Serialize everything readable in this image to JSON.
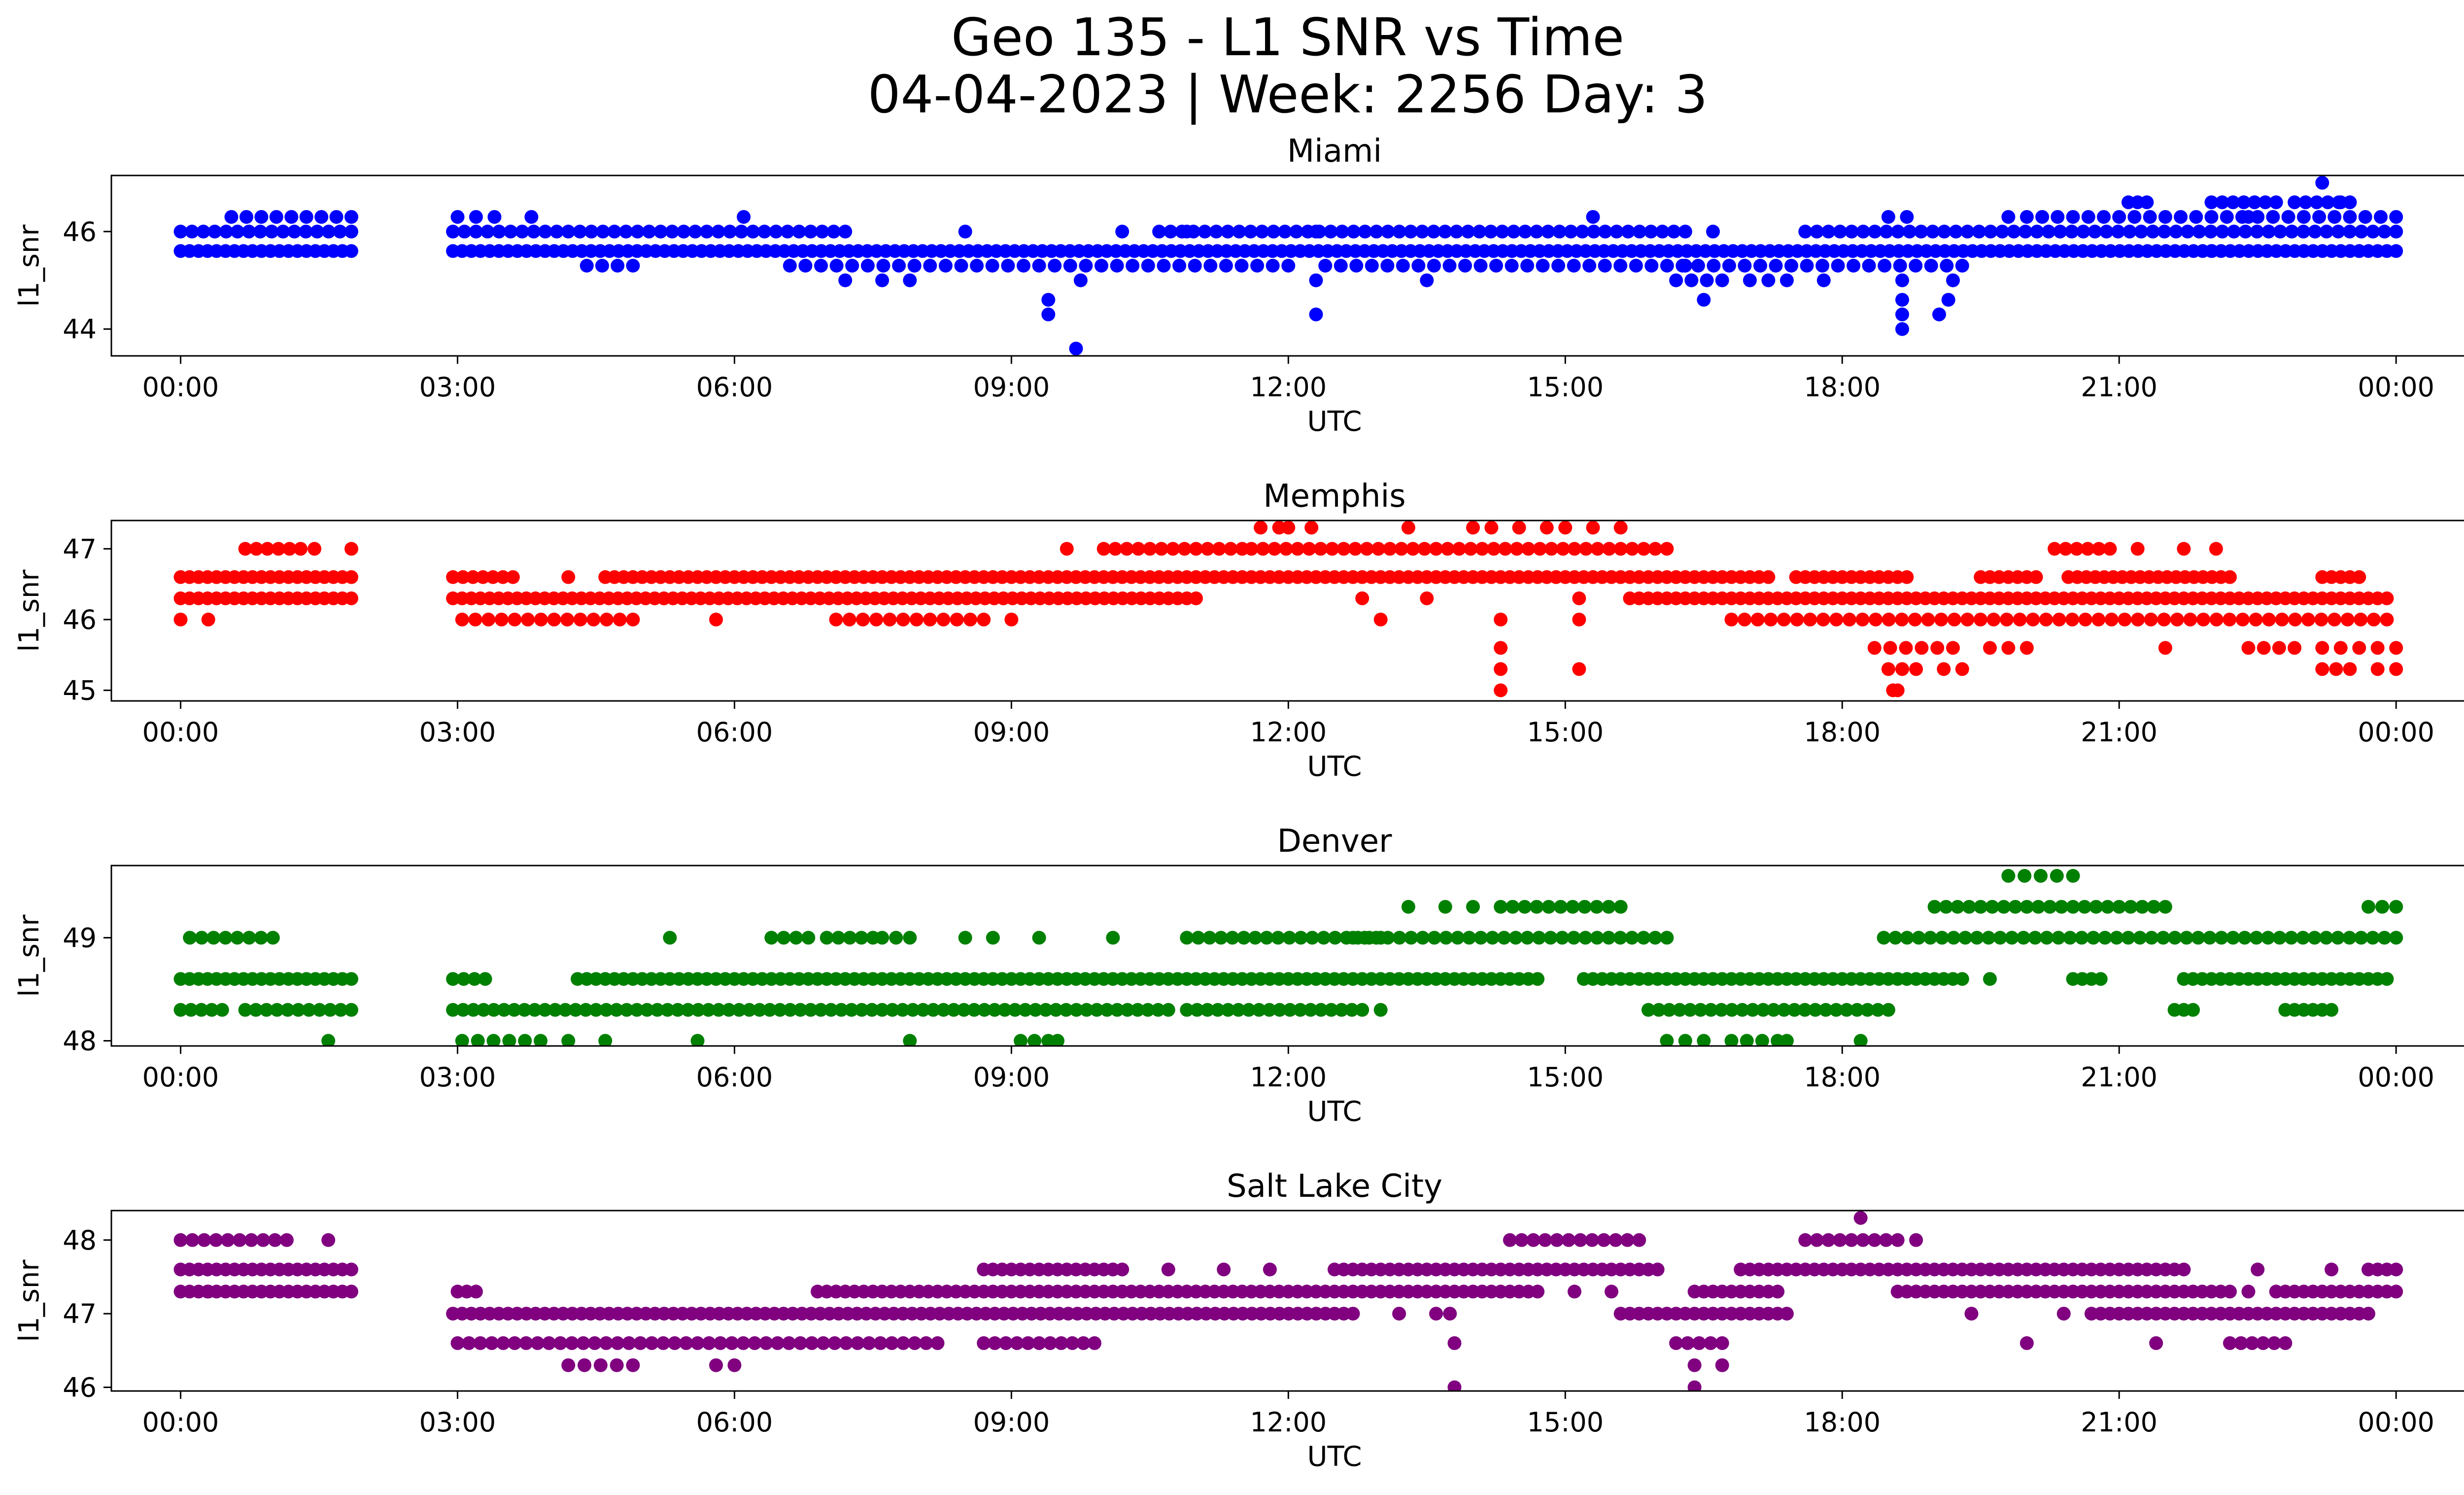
{
  "title_line1": "Geo 135 - L1 SNR vs Time",
  "title_line2": "04-04-2023 | Week: 2256 Day: 3",
  "chart_data": [
    {
      "type": "scatter",
      "title": "Miami",
      "xlabel": "UTC",
      "ylabel": "l1_snr",
      "color": "#0000ff",
      "xlim": [
        -0.75,
        25.75
      ],
      "ylim": [
        43.45,
        47.15
      ],
      "xticks": [
        0,
        3,
        6,
        9,
        12,
        15,
        18,
        21,
        24
      ],
      "xtick_labels": [
        "00:00",
        "03:00",
        "06:00",
        "09:00",
        "12:00",
        "15:00",
        "18:00",
        "21:00",
        "00:00"
      ],
      "yticks": [
        44,
        46
      ],
      "ytick_labels": [
        "44",
        "46"
      ],
      "bands": [
        {
          "y": 46.0,
          "segments": [
            [
              0.0,
              1.85
            ],
            [
              2.95,
              7.2
            ],
            [
              10.6,
              16.3
            ],
            [
              17.6,
              24.0
            ]
          ],
          "density": 8
        },
        {
          "y": 45.6,
          "segments": [
            [
              0.0,
              1.85
            ],
            [
              2.95,
              24.0
            ]
          ],
          "density": 10
        },
        {
          "y": 45.3,
          "segments": [
            [
              4.4,
              4.9
            ],
            [
              6.6,
              12.0
            ],
            [
              12.4,
              19.3
            ]
          ],
          "density": 6
        },
        {
          "y": 46.3,
          "segments": [
            [
              0.55,
              1.85
            ],
            [
              20.0,
              24.0
            ]
          ],
          "density": 6
        },
        {
          "y": 46.6,
          "segments": [
            [
              21.1,
              21.3
            ],
            [
              22.0,
              22.7
            ],
            [
              22.9,
              23.5
            ]
          ],
          "density": 8
        },
        {
          "y": 45.0,
          "segments": [
            [
              16.2,
              16.7
            ],
            [
              17.0,
              17.4
            ]
          ],
          "density": 5
        }
      ],
      "points": [
        [
          3.0,
          46.3
        ],
        [
          3.2,
          46.3
        ],
        [
          3.4,
          46.3
        ],
        [
          3.8,
          46.3
        ],
        [
          6.1,
          46.3
        ],
        [
          7.2,
          45.0
        ],
        [
          7.6,
          45.0
        ],
        [
          7.9,
          45.0
        ],
        [
          8.5,
          46.0
        ],
        [
          9.4,
          44.6
        ],
        [
          9.4,
          44.3
        ],
        [
          9.7,
          43.6
        ],
        [
          9.75,
          45.0
        ],
        [
          10.2,
          46.0
        ],
        [
          10.9,
          46.0
        ],
        [
          12.3,
          45.0
        ],
        [
          12.3,
          44.3
        ],
        [
          12.3,
          46.0
        ],
        [
          13.5,
          45.0
        ],
        [
          15.3,
          46.3
        ],
        [
          16.3,
          45.3
        ],
        [
          16.5,
          44.6
        ],
        [
          16.6,
          46.0
        ],
        [
          17.8,
          45.0
        ],
        [
          18.5,
          46.3
        ],
        [
          18.7,
          46.3
        ],
        [
          18.65,
          44.6
        ],
        [
          18.65,
          44.3
        ],
        [
          18.65,
          44.0
        ],
        [
          18.65,
          45.0
        ],
        [
          19.05,
          44.3
        ],
        [
          19.15,
          44.6
        ],
        [
          19.2,
          45.0
        ],
        [
          19.8,
          46.3
        ],
        [
          22.0,
          45.6
        ],
        [
          23.0,
          45.6
        ],
        [
          23.2,
          47.0
        ],
        [
          23.4,
          46.6
        ],
        [
          23.6,
          45.6
        ],
        [
          22.4,
          46.3
        ]
      ]
    },
    {
      "type": "scatter",
      "title": "Memphis",
      "xlabel": "UTC",
      "ylabel": "l1_snr",
      "color": "#ff0000",
      "xlim": [
        -0.75,
        25.75
      ],
      "ylim": [
        44.85,
        47.4
      ],
      "xticks": [
        0,
        3,
        6,
        9,
        12,
        15,
        18,
        21,
        24
      ],
      "xtick_labels": [
        "00:00",
        "03:00",
        "06:00",
        "09:00",
        "12:00",
        "15:00",
        "18:00",
        "21:00",
        "00:00"
      ],
      "yticks": [
        45,
        46,
        47
      ],
      "ytick_labels": [
        "45",
        "46",
        "47"
      ],
      "bands": [
        {
          "y": 46.6,
          "segments": [
            [
              0.0,
              1.85
            ],
            [
              2.95,
              3.6
            ],
            [
              4.6,
              17.2
            ],
            [
              17.5,
              18.7
            ],
            [
              19.5,
              20.1
            ],
            [
              20.45,
              22.2
            ],
            [
              23.2,
              23.6
            ]
          ],
          "density": 10
        },
        {
          "y": 46.3,
          "segments": [
            [
              0.0,
              1.85
            ],
            [
              2.95,
              11.0
            ],
            [
              15.7,
              23.9
            ]
          ],
          "density": 10
        },
        {
          "y": 46.0,
          "segments": [
            [
              3.05,
              4.9
            ],
            [
              7.1,
              8.7
            ],
            [
              16.8,
              23.9
            ]
          ],
          "density": 7
        },
        {
          "y": 47.0,
          "segments": [
            [
              0.7,
              1.3
            ],
            [
              10.0,
              11.5
            ],
            [
              11.6,
              16.1
            ],
            [
              20.3,
              20.9
            ]
          ],
          "density": 8
        },
        {
          "y": 45.6,
          "segments": [
            [
              18.35,
              19.2
            ],
            [
              19.6,
              20.0
            ],
            [
              22.4,
              22.9
            ],
            [
              23.2,
              23.6
            ],
            [
              23.8,
              24.0
            ]
          ],
          "density": 6
        },
        {
          "y": 45.3,
          "segments": [
            [
              18.5,
              18.8
            ],
            [
              19.1,
              19.3
            ],
            [
              23.2,
              23.5
            ],
            [
              23.8,
              24.0
            ]
          ],
          "density": 5
        }
      ],
      "points": [
        [
          0.0,
          46.0
        ],
        [
          0.3,
          46.0
        ],
        [
          1.45,
          47.0
        ],
        [
          1.85,
          47.0
        ],
        [
          4.2,
          46.6
        ],
        [
          5.8,
          46.0
        ],
        [
          9.0,
          46.0
        ],
        [
          9.6,
          47.0
        ],
        [
          11.7,
          47.3
        ],
        [
          11.9,
          47.3
        ],
        [
          12.25,
          47.3
        ],
        [
          12.0,
          47.3
        ],
        [
          13.3,
          47.3
        ],
        [
          14.0,
          47.3
        ],
        [
          14.2,
          47.3
        ],
        [
          14.5,
          47.3
        ],
        [
          14.8,
          47.3
        ],
        [
          15.0,
          47.3
        ],
        [
          15.3,
          47.3
        ],
        [
          15.6,
          47.3
        ],
        [
          12.8,
          46.3
        ],
        [
          13.0,
          46.0
        ],
        [
          13.5,
          46.3
        ],
        [
          14.3,
          46.0
        ],
        [
          14.3,
          45.6
        ],
        [
          14.3,
          45.3
        ],
        [
          14.3,
          45.0
        ],
        [
          15.15,
          46.3
        ],
        [
          15.15,
          46.0
        ],
        [
          15.15,
          45.3
        ],
        [
          18.55,
          45.0
        ],
        [
          18.6,
          45.0
        ],
        [
          21.5,
          45.6
        ],
        [
          21.2,
          47.0
        ],
        [
          21.7,
          47.0
        ],
        [
          22.05,
          47.0
        ]
      ]
    },
    {
      "type": "scatter",
      "title": "Denver",
      "xlabel": "UTC",
      "ylabel": "l1_snr",
      "color": "#008000",
      "xlim": [
        -0.75,
        25.75
      ],
      "ylim": [
        47.95,
        49.7
      ],
      "xticks": [
        0,
        3,
        6,
        9,
        12,
        15,
        18,
        21,
        24
      ],
      "xtick_labels": [
        "00:00",
        "03:00",
        "06:00",
        "09:00",
        "12:00",
        "15:00",
        "18:00",
        "21:00",
        "00:00"
      ],
      "yticks": [
        48,
        49
      ],
      "ytick_labels": [
        "48",
        "49"
      ],
      "bands": [
        {
          "y": 48.6,
          "segments": [
            [
              0.0,
              1.85
            ],
            [
              2.95,
              3.3
            ],
            [
              4.3,
              14.7
            ],
            [
              15.2,
              19.3
            ],
            [
              20.5,
              20.8
            ],
            [
              21.7,
              23.9
            ]
          ],
          "density": 10
        },
        {
          "y": 48.3,
          "segments": [
            [
              0.0,
              0.45
            ],
            [
              0.7,
              1.85
            ],
            [
              2.95,
              10.7
            ],
            [
              10.9,
              12.8
            ],
            [
              15.9,
              18.5
            ],
            [
              21.6,
              21.8
            ],
            [
              22.8,
              23.3
            ]
          ],
          "density": 9
        },
        {
          "y": 49.0,
          "segments": [
            [
              0.1,
              1.0
            ],
            [
              6.4,
              6.8
            ],
            [
              7.0,
              7.5
            ],
            [
              7.6,
              7.9
            ],
            [
              10.9,
              13.0
            ],
            [
              12.7,
              16.1
            ],
            [
              18.45,
              24.0
            ]
          ],
          "density": 8
        },
        {
          "y": 48.0,
          "segments": [
            [
              3.05,
              3.9
            ],
            [
              9.1,
              9.4
            ],
            [
              16.1,
              16.5
            ],
            [
              16.8,
              17.3
            ]
          ],
          "density": 6
        },
        {
          "y": 49.3,
          "segments": [
            [
              14.3,
              15.6
            ],
            [
              19.0,
              21.5
            ],
            [
              23.7,
              24.0
            ]
          ],
          "density": 8
        },
        {
          "y": 49.6,
          "segments": [
            [
              19.8,
              20.5
            ]
          ],
          "density": 6
        }
      ],
      "points": [
        [
          1.6,
          48.0
        ],
        [
          4.2,
          48.0
        ],
        [
          4.6,
          48.0
        ],
        [
          5.6,
          48.0
        ],
        [
          7.9,
          48.0
        ],
        [
          9.5,
          48.0
        ],
        [
          5.3,
          49.0
        ],
        [
          8.5,
          49.0
        ],
        [
          8.8,
          49.0
        ],
        [
          9.3,
          49.0
        ],
        [
          10.1,
          49.0
        ],
        [
          13.0,
          48.3
        ],
        [
          13.3,
          49.3
        ],
        [
          13.7,
          49.3
        ],
        [
          14.0,
          49.3
        ],
        [
          17.4,
          48.0
        ],
        [
          18.2,
          48.0
        ],
        [
          19.6,
          48.6
        ]
      ]
    },
    {
      "type": "scatter",
      "title": "Salt Lake City",
      "xlabel": "UTC",
      "ylabel": "l1_snr",
      "color": "#800080",
      "xlim": [
        -0.75,
        25.75
      ],
      "ylim": [
        45.95,
        48.4
      ],
      "xticks": [
        0,
        3,
        6,
        9,
        12,
        15,
        18,
        21,
        24
      ],
      "xtick_labels": [
        "00:00",
        "03:00",
        "06:00",
        "09:00",
        "12:00",
        "15:00",
        "18:00",
        "21:00",
        "00:00"
      ],
      "yticks": [
        46,
        47,
        48
      ],
      "ytick_labels": [
        "46",
        "47",
        "48"
      ],
      "bands": [
        {
          "y": 48.0,
          "segments": [
            [
              0.0,
              1.15
            ],
            [
              14.4,
              15.8
            ],
            [
              17.6,
              18.6
            ]
          ],
          "density": 8
        },
        {
          "y": 47.6,
          "segments": [
            [
              0.0,
              1.85
            ],
            [
              8.7,
              10.2
            ],
            [
              12.5,
              16.0
            ],
            [
              16.9,
              21.7
            ],
            [
              23.7,
              24.0
            ]
          ],
          "density": 10
        },
        {
          "y": 47.3,
          "segments": [
            [
              0.0,
              1.85
            ],
            [
              3.0,
              3.2
            ],
            [
              6.9,
              14.7
            ],
            [
              16.4,
              17.3
            ],
            [
              18.6,
              22.2
            ],
            [
              22.7,
              24.0
            ]
          ],
          "density": 10
        },
        {
          "y": 47.0,
          "segments": [
            [
              2.95,
              12.7
            ],
            [
              15.6,
              17.4
            ],
            [
              20.7,
              23.7
            ]
          ],
          "density": 10
        },
        {
          "y": 46.6,
          "segments": [
            [
              3.0,
              8.2
            ],
            [
              8.7,
              9.9
            ],
            [
              16.2,
              16.7
            ],
            [
              22.2,
              22.8
            ]
          ],
          "density": 8
        },
        {
          "y": 46.3,
          "segments": [
            [
              4.2,
              4.9
            ],
            [
              5.8,
              6.0
            ]
          ],
          "density": 5
        }
      ],
      "points": [
        [
          1.6,
          48.0
        ],
        [
          0.3,
          47.3
        ],
        [
          10.1,
          47.6
        ],
        [
          10.7,
          47.6
        ],
        [
          11.3,
          47.6
        ],
        [
          11.8,
          47.6
        ],
        [
          13.2,
          47.0
        ],
        [
          13.6,
          47.0
        ],
        [
          13.75,
          47.0
        ],
        [
          13.8,
          46.6
        ],
        [
          13.8,
          46.0
        ],
        [
          15.1,
          47.3
        ],
        [
          15.5,
          47.3
        ],
        [
          16.4,
          46.3
        ],
        [
          16.4,
          46.0
        ],
        [
          16.7,
          46.3
        ],
        [
          18.2,
          48.3
        ],
        [
          18.8,
          48.0
        ],
        [
          19.4,
          47.0
        ],
        [
          20.0,
          46.6
        ],
        [
          20.4,
          47.0
        ],
        [
          21.4,
          46.6
        ],
        [
          22.2,
          47.0
        ],
        [
          22.5,
          47.6
        ],
        [
          23.3,
          47.6
        ],
        [
          22.4,
          47.3
        ]
      ]
    }
  ]
}
